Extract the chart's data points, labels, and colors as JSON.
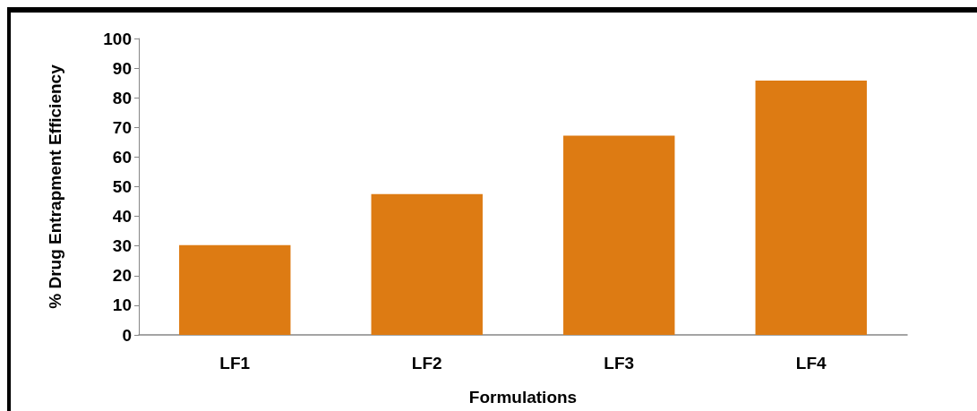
{
  "chart_data": {
    "type": "bar",
    "xlabel": "Formulations",
    "ylabel": "% Drug Entrapment Efficiency",
    "categories": [
      "LF1",
      "LF2",
      "LF3",
      "LF4"
    ],
    "values": [
      30.3,
      47.5,
      67.2,
      85.8
    ],
    "color": "#dd7b13",
    "ylim": [
      0,
      100
    ],
    "yticks": [
      0,
      10,
      20,
      30,
      40,
      50,
      60,
      70,
      80,
      90,
      100
    ],
    "grid": false
  }
}
